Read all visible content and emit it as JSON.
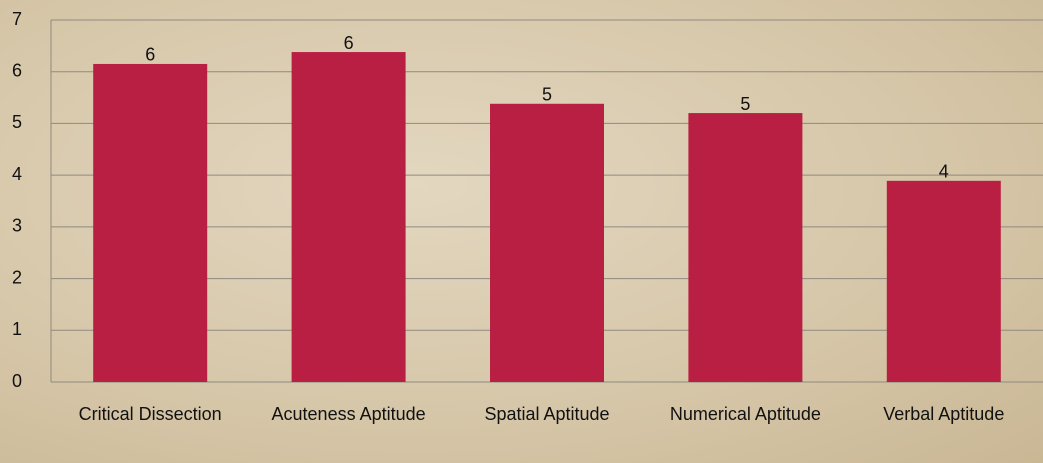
{
  "chart_data": {
    "type": "bar",
    "categories": [
      "Critical Dissection",
      "Acuteness Aptitude",
      "Spatial Aptitude",
      "Numerical Aptitude",
      "Verbal Aptitude"
    ],
    "values": [
      6.15,
      6.38,
      5.38,
      5.2,
      3.89
    ],
    "value_labels": [
      "6",
      "6",
      "5",
      "5",
      "4"
    ],
    "color": "#b91e43",
    "ylim": [
      0,
      7
    ],
    "yticks": [
      0,
      1,
      2,
      3,
      4,
      5,
      6,
      7
    ],
    "grid": true
  }
}
